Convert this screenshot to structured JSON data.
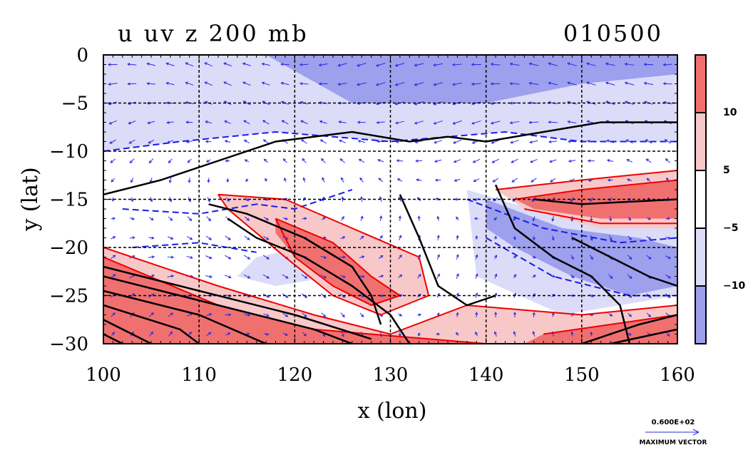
{
  "chart_data": {
    "type": "heatmap",
    "title": "u uv z 200 mb",
    "timestamp": "010500",
    "xlabel": "x (lon)",
    "ylabel": "y (lat)",
    "xlim": [
      100,
      160
    ],
    "ylim": [
      -30,
      0
    ],
    "x_ticks": [
      "100",
      "110",
      "120",
      "130",
      "140",
      "150",
      "160"
    ],
    "y_ticks": [
      "0",
      "−5",
      "−10",
      "−15",
      "−20",
      "−25",
      "−30"
    ],
    "grid": true,
    "colorbar": {
      "labels": [
        "10",
        "5",
        "−5",
        "−10"
      ],
      "levels": [
        -15,
        -10,
        -5,
        5,
        10,
        15
      ],
      "colors": [
        "#9da0ec",
        "#dcdcf8",
        "#ffffff",
        "#f8c8c8",
        "#f07070"
      ]
    },
    "vector_reference": {
      "value_label": "0.600E+02",
      "caption": "MAXIMUM VECTOR"
    },
    "colors": {
      "positive_contour": "#ee0000",
      "negative_contour": "#1a1aee",
      "height_contour": "#000000",
      "arrow": "#2a2ae6"
    },
    "series": [
      {
        "kind": "u-wind-shaded",
        "regions": [
          {
            "level": -10,
            "polygon": [
              [
                100,
                0
              ],
              [
                117,
                0
              ],
              [
                126,
                -5
              ],
              [
                140,
                -5
              ],
              [
                150,
                -3
              ],
              [
                160,
                -2
              ],
              [
                160,
                0
              ]
            ]
          },
          {
            "level": -5,
            "polygon": [
              [
                100,
                0
              ],
              [
                160,
                0
              ],
              [
                160,
                -9
              ],
              [
                150,
                -9
              ],
              [
                142,
                -8
              ],
              [
                130,
                -9
              ],
              [
                118,
                -8
              ],
              [
                108,
                -9
              ],
              [
                100,
                -10
              ]
            ]
          },
          {
            "level": -10,
            "polygon": [
              [
                140,
                -15
              ],
              [
                148,
                -18
              ],
              [
                156,
                -19
              ],
              [
                160,
                -20
              ],
              [
                160,
                -24
              ],
              [
                155,
                -25
              ],
              [
                149,
                -23
              ],
              [
                143,
                -20
              ],
              [
                140,
                -18
              ]
            ]
          },
          {
            "level": -5,
            "polygon": [
              [
                138,
                -14
              ],
              [
                148,
                -17
              ],
              [
                160,
                -18
              ],
              [
                160,
                -25
              ],
              [
                148,
                -27
              ],
              [
                139,
                -23
              ]
            ]
          },
          {
            "level": -5,
            "polygon": [
              [
                116,
                -21
              ],
              [
                121,
                -20
              ],
              [
                124,
                -23
              ],
              [
                118,
                -24
              ],
              [
                114,
                -23
              ]
            ]
          },
          {
            "level": 5,
            "polygon": [
              [
                112,
                -14.5
              ],
              [
                119,
                -15
              ],
              [
                126,
                -18
              ],
              [
                133,
                -21
              ],
              [
                134,
                -25
              ],
              [
                129,
                -27
              ],
              [
                124,
                -25
              ],
              [
                119,
                -21
              ],
              [
                113,
                -16
              ]
            ]
          },
          {
            "level": 10,
            "polygon": [
              [
                118,
                -17
              ],
              [
                124,
                -19.5
              ],
              [
                128,
                -23
              ],
              [
                131,
                -25
              ],
              [
                128,
                -26
              ],
              [
                124,
                -24
              ],
              [
                120,
                -21
              ],
              [
                118,
                -18.5
              ]
            ]
          },
          {
            "level": 5,
            "polygon": [
              [
                141,
                -14
              ],
              [
                150,
                -13
              ],
              [
                160,
                -12
              ],
              [
                160,
                -18
              ],
              [
                152,
                -18
              ],
              [
                144,
                -16
              ]
            ]
          },
          {
            "level": 10,
            "polygon": [
              [
                143,
                -15
              ],
              [
                150,
                -14
              ],
              [
                160,
                -13
              ],
              [
                160,
                -17
              ],
              [
                152,
                -17
              ],
              [
                145,
                -16
              ]
            ]
          },
          {
            "level": 5,
            "polygon": [
              [
                100,
                -20
              ],
              [
                112,
                -24
              ],
              [
                122,
                -27
              ],
              [
                130,
                -29
              ],
              [
                138,
                -26
              ],
              [
                150,
                -27
              ],
              [
                160,
                -26
              ],
              [
                160,
                -30
              ],
              [
                100,
                -30
              ]
            ]
          },
          {
            "level": 10,
            "polygon": [
              [
                100,
                -21
              ],
              [
                112,
                -26
              ],
              [
                122,
                -28.5
              ],
              [
                140,
                -30
              ],
              [
                100,
                -30
              ]
            ]
          },
          {
            "level": 10,
            "polygon": [
              [
                146,
                -29
              ],
              [
                160,
                -27
              ],
              [
                160,
                -30
              ],
              [
                144,
                -30
              ]
            ]
          }
        ]
      },
      {
        "kind": "geopotential-height-contours",
        "lines": [
          [
            [
              100,
              -14.5
            ],
            [
              106,
              -13
            ],
            [
              112,
              -11
            ],
            [
              118,
              -9
            ],
            [
              126,
              -8
            ],
            [
              132,
              -9
            ],
            [
              136,
              -8.5
            ],
            [
              140,
              -9
            ],
            [
              146,
              -8
            ],
            [
              152,
              -7
            ],
            [
              160,
              -7
            ]
          ],
          [
            [
              113,
              -17
            ],
            [
              116,
              -19
            ],
            [
              121,
              -21
            ],
            [
              126,
              -24
            ],
            [
              130,
              -27
            ],
            [
              132,
              -30
            ]
          ],
          [
            [
              111,
              -15.5
            ],
            [
              115,
              -16.5
            ],
            [
              121,
              -19
            ],
            [
              126,
              -22
            ],
            [
              128,
              -25
            ],
            [
              129,
              -28
            ]
          ],
          [
            [
              131,
              -14.5
            ],
            [
              133,
              -19
            ],
            [
              135,
              -24
            ],
            [
              138,
              -26
            ],
            [
              141,
              -25
            ]
          ],
          [
            [
              141,
              -13.5
            ],
            [
              143,
              -18
            ],
            [
              147,
              -21
            ],
            [
              151,
              -23
            ],
            [
              154,
              -26
            ],
            [
              155,
              -30
            ]
          ],
          [
            [
              149,
              -19
            ],
            [
              153,
              -21
            ],
            [
              157,
              -23
            ],
            [
              160,
              -24
            ]
          ],
          [
            [
              145,
              -15
            ],
            [
              150,
              -15.5
            ],
            [
              160,
              -15
            ]
          ],
          [
            [
              100,
              -22
            ],
            [
              110,
              -24.5
            ],
            [
              120,
              -27
            ],
            [
              128,
              -29.5
            ]
          ],
          [
            [
              100,
              -23
            ],
            [
              112,
              -26
            ],
            [
              122,
              -28.5
            ],
            [
              126,
              -30
            ]
          ],
          [
            [
              100,
              -24.5
            ],
            [
              110,
              -27
            ],
            [
              117,
              -30
            ]
          ],
          [
            [
              100,
              -26
            ],
            [
              108,
              -28.5
            ],
            [
              110,
              -30
            ]
          ],
          [
            [
              100,
              -27.5
            ],
            [
              105,
              -30
            ]
          ],
          [
            [
              100,
              -29
            ],
            [
              102,
              -30
            ]
          ],
          [
            [
              150,
              -30
            ],
            [
              156,
              -28
            ],
            [
              160,
              -27
            ]
          ],
          [
            [
              153,
              -30
            ],
            [
              160,
              -28.5
            ]
          ]
        ]
      },
      {
        "kind": "u-wind-contours-negative",
        "lines": [
          [
            [
              100,
              -10
            ],
            [
              108,
              -9
            ],
            [
              118,
              -8
            ],
            [
              130,
              -9
            ],
            [
              142,
              -8
            ],
            [
              150,
              -9
            ],
            [
              160,
              -9
            ]
          ],
          [
            [
              102,
              -16
            ],
            [
              110,
              -16.5
            ],
            [
              116,
              -15.5
            ],
            [
              120,
              -16
            ],
            [
              126,
              -14
            ]
          ],
          [
            [
              138,
              -15
            ],
            [
              146,
              -18
            ],
            [
              154,
              -19.5
            ],
            [
              160,
              -19
            ]
          ],
          [
            [
              140,
              -19
            ],
            [
              147,
              -23
            ],
            [
              155,
              -25
            ],
            [
              160,
              -25
            ]
          ],
          [
            [
              103,
              -20
            ],
            [
              110,
              -19.5
            ],
            [
              116,
              -20.5
            ]
          ]
        ]
      },
      {
        "kind": "u-wind-contours-positive",
        "lines": [
          [
            [
              112,
              -14.5
            ],
            [
              119,
              -15
            ],
            [
              126,
              -18
            ],
            [
              133,
              -21
            ],
            [
              134,
              -25
            ],
            [
              129,
              -27
            ],
            [
              124,
              -25
            ],
            [
              119,
              -21
            ],
            [
              113,
              -16
            ],
            [
              112,
              -14.5
            ]
          ],
          [
            [
              118,
              -17
            ],
            [
              124,
              -19.5
            ],
            [
              128,
              -23
            ],
            [
              131,
              -25
            ],
            [
              128,
              -26
            ],
            [
              124,
              -24
            ],
            [
              120,
              -21
            ],
            [
              118,
              -17
            ]
          ],
          [
            [
              141,
              -14
            ],
            [
              150,
              -13
            ],
            [
              160,
              -12
            ]
          ],
          [
            [
              143,
              -15
            ],
            [
              150,
              -14
            ],
            [
              160,
              -13
            ]
          ],
          [
            [
              144,
              -16
            ],
            [
              152,
              -17.5
            ],
            [
              160,
              -17.5
            ]
          ],
          [
            [
              100,
              -20
            ],
            [
              112,
              -24
            ],
            [
              122,
              -27
            ],
            [
              130,
              -29
            ],
            [
              138,
              -26
            ],
            [
              150,
              -27
            ],
            [
              160,
              -26
            ]
          ],
          [
            [
              100,
              -21
            ],
            [
              112,
              -26
            ],
            [
              122,
              -28.5
            ],
            [
              140,
              -30
            ]
          ],
          [
            [
              146,
              -29
            ],
            [
              160,
              -27
            ]
          ]
        ]
      }
    ]
  }
}
